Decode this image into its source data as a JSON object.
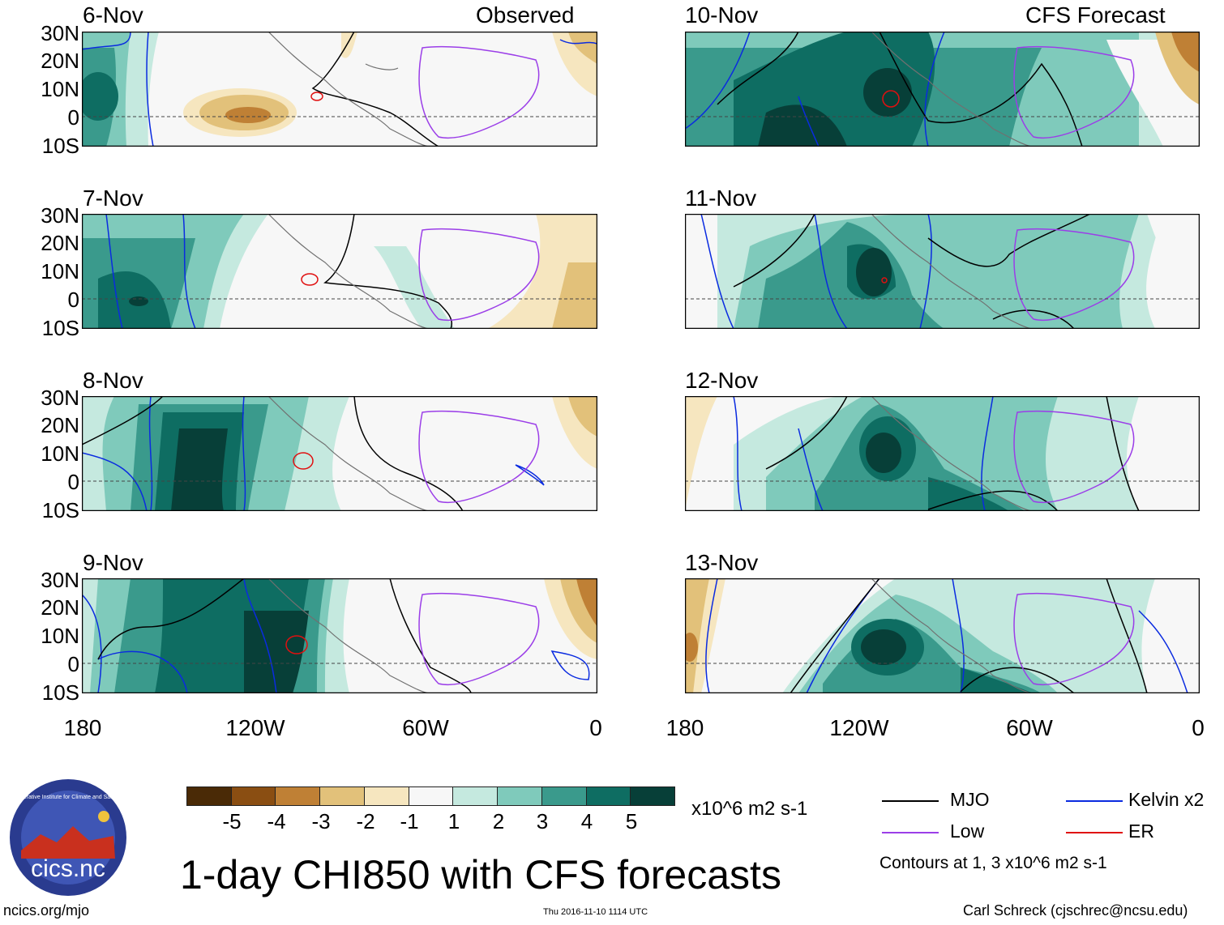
{
  "panels": {
    "p0": {
      "date": "6-Nov",
      "tag": "Observed"
    },
    "p1": {
      "date": "7-Nov"
    },
    "p2": {
      "date": "8-Nov"
    },
    "p3": {
      "date": "9-Nov"
    },
    "p4": {
      "date": "10-Nov",
      "tag": "CFS Forecast"
    },
    "p5": {
      "date": "11-Nov"
    },
    "p6": {
      "date": "12-Nov"
    },
    "p7": {
      "date": "13-Nov"
    }
  },
  "axes": {
    "lat_labels": [
      "30N",
      "20N",
      "10N",
      "0",
      "10S"
    ],
    "lon_labels": [
      "180",
      "120W",
      "60W",
      "0"
    ]
  },
  "colorbar": {
    "ticks": [
      "-5",
      "-4",
      "-3",
      "-2",
      "-1",
      "1",
      "2",
      "3",
      "4",
      "5"
    ],
    "colors": [
      "#4a2a06",
      "#8a4e12",
      "#bf8035",
      "#e2c17a",
      "#f6e6bf",
      "#f7f7f7",
      "#c5e9df",
      "#7fcabb",
      "#3a9a8c",
      "#0e6d62",
      "#073f38"
    ],
    "units": "x10^6 m2 s-1"
  },
  "title": "1-day CHI850 with CFS forecasts",
  "legend": {
    "mjo": {
      "label": "MJO",
      "color": "#000000"
    },
    "kelvin": {
      "label": "Kelvin x2",
      "color": "#0a2be0"
    },
    "low": {
      "label": "Low",
      "color": "#9b3ee8"
    },
    "er": {
      "label": "ER",
      "color": "#e01010"
    },
    "note": "Contours at 1, 3 x10^6 m2 s-1"
  },
  "logo": {
    "text": "cics.nc",
    "ring_text": "Cooperative Institute for Climate and Satellites"
  },
  "footer": {
    "left": "ncics.org/mjo",
    "center": "Thu 2016-11-10 1114 UTC",
    "right": "Carl Schreck (cjschrec@ncsu.edu)"
  }
}
